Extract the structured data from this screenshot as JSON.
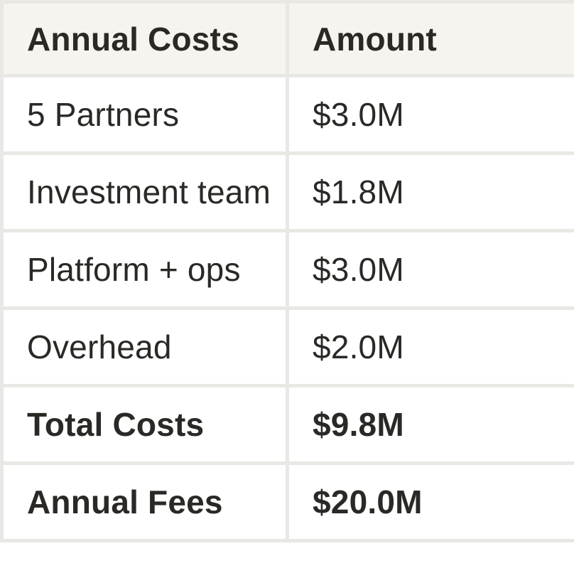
{
  "colors": {
    "header_bg": "#f6f4ef",
    "row_bg": "#ffffff",
    "border": "#e9e8e5",
    "text": "#2b2926"
  },
  "table": {
    "columns": [
      {
        "label": "Annual Costs"
      },
      {
        "label": "Amount"
      }
    ],
    "rows": [
      {
        "label": "5 Partners",
        "amount": "$3.0M",
        "emphasis": false
      },
      {
        "label": "Investment team",
        "amount": "$1.8M",
        "emphasis": false
      },
      {
        "label": "Platform + ops",
        "amount": "$3.0M",
        "emphasis": false
      },
      {
        "label": "Overhead",
        "amount": "$2.0M",
        "emphasis": false
      },
      {
        "label": "Total Costs",
        "amount": "$9.8M",
        "emphasis": true
      },
      {
        "label": "Annual Fees",
        "amount": "$20.0M",
        "emphasis": true
      }
    ]
  },
  "chart_data": {
    "type": "table",
    "title": "Annual Costs",
    "columns": [
      "Annual Costs",
      "Amount"
    ],
    "rows": [
      [
        "5 Partners",
        "$3.0M"
      ],
      [
        "Investment team",
        "$1.8M"
      ],
      [
        "Platform + ops",
        "$3.0M"
      ],
      [
        "Overhead",
        "$2.0M"
      ],
      [
        "Total Costs",
        "$9.8M"
      ],
      [
        "Annual Fees",
        "$20.0M"
      ]
    ],
    "values_millions_usd": {
      "5 Partners": 3.0,
      "Investment team": 1.8,
      "Platform + ops": 3.0,
      "Overhead": 2.0,
      "Total Costs": 9.8,
      "Annual Fees": 20.0
    }
  }
}
